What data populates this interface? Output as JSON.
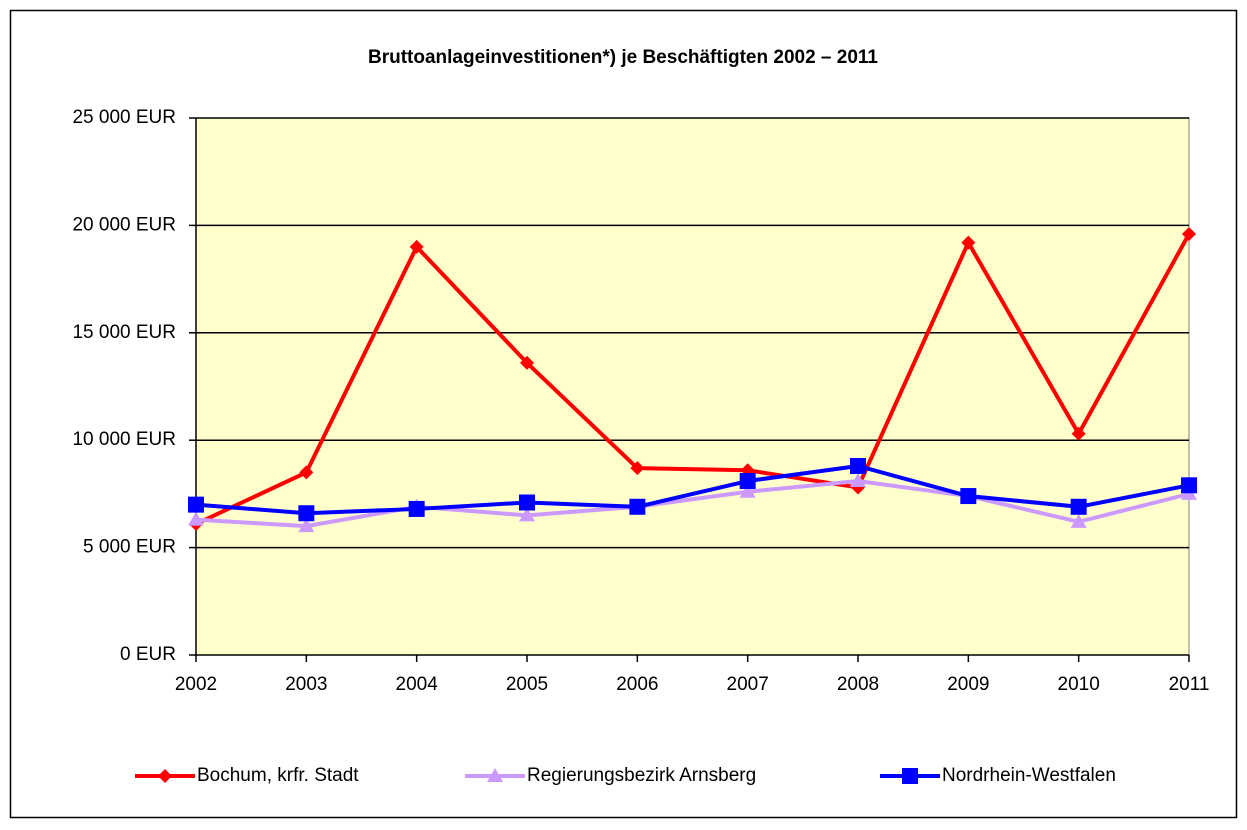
{
  "chart_data": {
    "type": "line",
    "title": "Bruttoanlageinvestitionen*) je Beschäftigten 2002 – 2011",
    "categories": [
      "2002",
      "2003",
      "2004",
      "2005",
      "2006",
      "2007",
      "2008",
      "2009",
      "2010",
      "2011"
    ],
    "series": [
      {
        "name": "Bochum, krfr. Stadt",
        "color": "#ff0000",
        "marker": "diamond",
        "values": [
          6100,
          8500,
          19000,
          13600,
          8700,
          8600,
          7800,
          19200,
          10300,
          19600
        ]
      },
      {
        "name": "Regierungsbezirk Arnsberg",
        "color": "#cc99ff",
        "marker": "triangle",
        "values": [
          6300,
          6000,
          6900,
          6500,
          6900,
          7600,
          8100,
          7400,
          6200,
          7500
        ]
      },
      {
        "name": "Nordrhein-Westfalen",
        "color": "#0000ff",
        "marker": "square",
        "values": [
          7000,
          6600,
          6800,
          7100,
          6900,
          8100,
          8800,
          7400,
          6900,
          7900
        ]
      }
    ],
    "ylim": [
      0,
      25000
    ],
    "yticks": [
      {
        "value": 0,
        "label": "0 EUR"
      },
      {
        "value": 5000,
        "label": "5 000 EUR"
      },
      {
        "value": 10000,
        "label": "10 000 EUR"
      },
      {
        "value": 15000,
        "label": "15 000 EUR"
      },
      {
        "value": 20000,
        "label": "20 000 EUR"
      },
      {
        "value": 25000,
        "label": "25 000 EUR"
      }
    ],
    "grid": true,
    "plot_background": "#ffffcc",
    "legend": "bottom"
  }
}
